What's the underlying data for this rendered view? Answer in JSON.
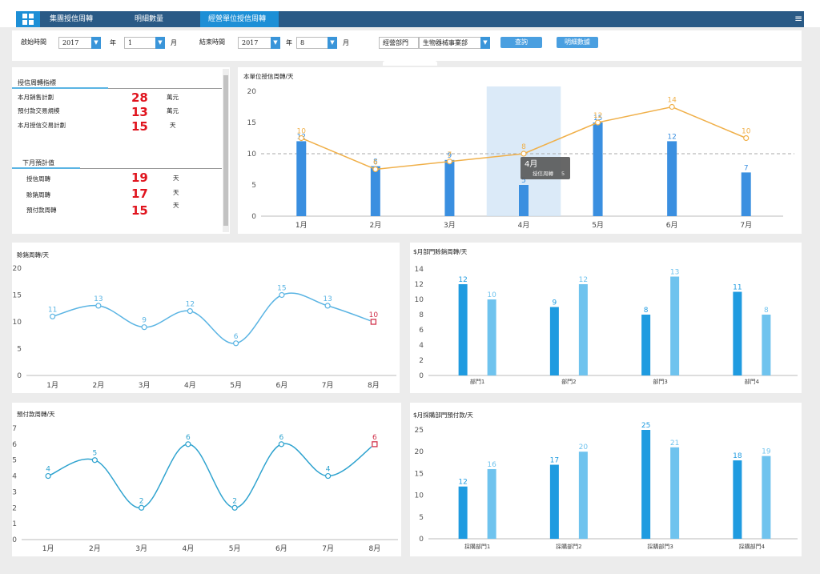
{
  "nav": {
    "tabs": [
      {
        "label": "集團授信周轉"
      },
      {
        "label": "明細數量"
      },
      {
        "label": "經營單位授信周轉"
      }
    ]
  },
  "filter": {
    "start_label": "啟始時間",
    "start_year": "2017",
    "year_label": "年",
    "start_month": "1",
    "month_label": "月",
    "end_label": "結束時間",
    "end_year": "2017",
    "end_month": "8",
    "dept_label": "經營部門",
    "dept_value": "生物器械事業部",
    "query_button": "查詢",
    "detail_button": "明細數據"
  },
  "summary": {
    "section1_title": "授信周轉指標",
    "items1": [
      {
        "label": "本月銷售計劃",
        "value": "28",
        "unit": "萬元"
      },
      {
        "label": "預付款交易規模",
        "value": "13",
        "unit": "萬元"
      },
      {
        "label": "本月授信交易計劃",
        "value": "15",
        "unit": "天"
      }
    ],
    "section2_title": "下月預計值",
    "items2": [
      {
        "label": "授信周轉",
        "value": "19",
        "unit": "天"
      },
      {
        "label": "賒銷周轉",
        "value": "17",
        "unit": "天"
      },
      {
        "label": "預付款周轉",
        "value": "15",
        "unit": "天"
      }
    ]
  },
  "tooltip": {
    "title": "4月",
    "label": "授信周轉",
    "value": "5"
  },
  "chart_data": [
    {
      "type": "bar",
      "title": "本單位授信周轉/天",
      "categories": [
        "1月",
        "2月",
        "3月",
        "4月",
        "5月",
        "6月",
        "7月"
      ],
      "series": [
        {
          "values": [
            12,
            8,
            9,
            5,
            15,
            12,
            7
          ],
          "color": "#3a8fe0"
        },
        {
          "type": "line",
          "axis": "right",
          "values": [
            10,
            6,
            7,
            8,
            12,
            14,
            10
          ],
          "color": "#f0b04a"
        }
      ],
      "ylim": [
        0,
        20
      ],
      "y2lim": [
        0,
        16
      ],
      "yticks": [
        0,
        5,
        10,
        15,
        20
      ],
      "y2ticks": [
        0,
        2,
        4,
        6,
        8,
        10,
        12,
        14,
        16
      ],
      "reference_line": 10,
      "highlighted_category": "4月"
    },
    {
      "type": "line",
      "title": "賒銷周轉/天",
      "categories": [
        "1月",
        "2月",
        "3月",
        "4月",
        "5月",
        "6月",
        "7月",
        "8月"
      ],
      "series": [
        {
          "values": [
            11,
            13,
            9,
            12,
            6,
            15,
            13,
            10
          ],
          "color": "#5ab4e3"
        }
      ],
      "ylim": [
        0,
        20
      ],
      "yticks": [
        0,
        5,
        10,
        15,
        20
      ]
    },
    {
      "type": "bar",
      "title": "$月部門賒銷周轉/天",
      "categories": [
        "部門1",
        "部門2",
        "部門3",
        "部門4"
      ],
      "series": [
        {
          "values": [
            12,
            9,
            8,
            11
          ],
          "color": "#1f9be0"
        },
        {
          "values": [
            10,
            12,
            13,
            8
          ],
          "color": "#6fc3ee"
        }
      ],
      "ylim": [
        0,
        14
      ],
      "yticks": [
        0,
        2,
        4,
        6,
        8,
        10,
        12,
        14
      ]
    },
    {
      "type": "line",
      "title": "預付款周轉/天",
      "categories": [
        "1月",
        "2月",
        "3月",
        "4月",
        "5月",
        "6月",
        "7月",
        "8月"
      ],
      "series": [
        {
          "values": [
            4,
            5,
            2,
            6,
            2,
            6,
            4,
            6
          ],
          "color": "#2fa3cf"
        }
      ],
      "ylim": [
        0,
        7
      ],
      "yticks": [
        0,
        1,
        2,
        3,
        4,
        5,
        6,
        7
      ]
    },
    {
      "type": "bar",
      "title": "$月採購部門預付款/天",
      "categories": [
        "採購部門1",
        "採購部門2",
        "採購部門3",
        "採購部門4"
      ],
      "series": [
        {
          "values": [
            12,
            17,
            25,
            18
          ],
          "color": "#1f9be0"
        },
        {
          "values": [
            16,
            20,
            21,
            19
          ],
          "color": "#6fc3ee"
        }
      ],
      "ylim": [
        0,
        25
      ],
      "yticks": [
        0,
        5,
        10,
        15,
        20,
        25
      ]
    }
  ]
}
